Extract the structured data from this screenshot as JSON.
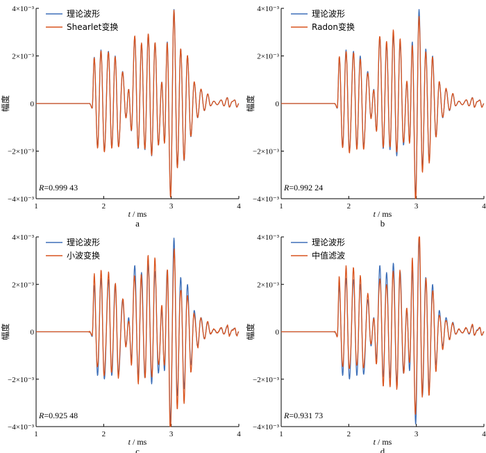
{
  "chart_data": [
    {
      "type": "line",
      "panel": "a",
      "ylabel": "幅度",
      "xlabel_var": "t",
      "xlabel_unit": " / ms",
      "xlim": [
        1,
        4
      ],
      "ylim": [
        -0.004,
        0.004
      ],
      "x_ticks": [
        "1",
        "2",
        "3",
        "4"
      ],
      "y_ticks": [
        "−4×10⁻³",
        "−2×10⁻³",
        "0",
        "2×10⁻³",
        "4×10⁻³"
      ],
      "legend_position": "top-left",
      "r_prefix": "R",
      "r_value": "=0.999 43",
      "series": [
        {
          "name": "理论波形",
          "color": "#3d6fb8",
          "deviation": 0.0
        },
        {
          "name": "Shearlet变换",
          "color": "#d9541e",
          "deviation": 0.02
        }
      ]
    },
    {
      "type": "line",
      "panel": "b",
      "ylabel": "幅度",
      "xlabel_var": "t",
      "xlabel_unit": " / ms",
      "xlim": [
        1,
        4
      ],
      "ylim": [
        -0.004,
        0.004
      ],
      "x_ticks": [
        "1",
        "2",
        "3",
        "4"
      ],
      "y_ticks": [
        "−4×10⁻³",
        "−2×10⁻³",
        "0",
        "2×10⁻³",
        "4×10⁻³"
      ],
      "legend_position": "top-left",
      "r_prefix": "R",
      "r_value": "=0.992 24",
      "series": [
        {
          "name": "理论波形",
          "color": "#3d6fb8",
          "deviation": 0.0
        },
        {
          "name": "Radon变换",
          "color": "#d9541e",
          "deviation": 0.08
        }
      ]
    },
    {
      "type": "line",
      "panel": "c",
      "ylabel": "幅度",
      "xlabel_var": "t",
      "xlabel_unit": " / ms",
      "xlim": [
        1,
        4
      ],
      "ylim": [
        -0.004,
        0.004
      ],
      "x_ticks": [
        "1",
        "2",
        "3",
        "4"
      ],
      "y_ticks": [
        "−4×10⁻³",
        "−2×10⁻³",
        "0",
        "2×10⁻³",
        "4×10⁻³"
      ],
      "legend_position": "top-left",
      "r_prefix": "R",
      "r_value": "=0.925 48",
      "series": [
        {
          "name": "理论波形",
          "color": "#3d6fb8",
          "deviation": 0.0
        },
        {
          "name": "小波变换",
          "color": "#d9541e",
          "deviation": 0.28
        }
      ]
    },
    {
      "type": "line",
      "panel": "d",
      "ylabel": "幅度",
      "xlabel_var": "t",
      "xlabel_unit": " / ms",
      "xlim": [
        1,
        4
      ],
      "ylim": [
        -0.004,
        0.004
      ],
      "x_ticks": [
        "1",
        "2",
        "3",
        "4"
      ],
      "y_ticks": [
        "−4×10⁻³",
        "−2×10⁻³",
        "0",
        "2×10⁻³",
        "4×10⁻³"
      ],
      "legend_position": "top-left",
      "r_prefix": "R",
      "r_value": "=0.931 73",
      "series": [
        {
          "name": "理论波形",
          "color": "#3d6fb8",
          "deviation": 0.0
        },
        {
          "name": "中值滤波",
          "color": "#d9541e",
          "deviation": 0.25
        }
      ]
    }
  ],
  "waveform": {
    "units": "x in ms, y in amplitude",
    "peaks": [
      [
        1.8,
        -4e-05
      ],
      [
        1.83,
        -0.0002
      ],
      [
        1.86,
        0.00195
      ],
      [
        1.91,
        -0.00185
      ],
      [
        1.96,
        0.00225
      ],
      [
        2.01,
        -0.002
      ],
      [
        2.07,
        0.0022
      ],
      [
        2.12,
        -0.00185
      ],
      [
        2.17,
        0.002
      ],
      [
        2.22,
        -0.0018
      ],
      [
        2.28,
        0.00135
      ],
      [
        2.33,
        -0.0006
      ],
      [
        2.37,
        0.0006
      ],
      [
        2.41,
        -0.00115
      ],
      [
        2.46,
        0.0028
      ],
      [
        2.51,
        -0.0019
      ],
      [
        2.56,
        0.0025
      ],
      [
        2.61,
        -0.00195
      ],
      [
        2.66,
        0.0029
      ],
      [
        2.71,
        -0.0022
      ],
      [
        2.76,
        0.00255
      ],
      [
        2.81,
        -0.00175
      ],
      [
        2.86,
        0.0009
      ],
      [
        2.9,
        -0.00165
      ],
      [
        2.94,
        0.0026
      ],
      [
        2.99,
        -0.0039
      ],
      [
        3.04,
        0.00395
      ],
      [
        3.09,
        -0.0027
      ],
      [
        3.14,
        0.0023
      ],
      [
        3.19,
        -0.0024
      ],
      [
        3.24,
        0.002
      ],
      [
        3.29,
        -0.0014
      ],
      [
        3.34,
        0.0009
      ],
      [
        3.39,
        -0.0006
      ],
      [
        3.44,
        0.0006
      ],
      [
        3.49,
        -0.0003
      ],
      [
        3.54,
        0.0004
      ],
      [
        3.58,
        -0.0001
      ],
      [
        3.63,
        0.0001
      ],
      [
        3.68,
        -5e-05
      ],
      [
        3.74,
        0.00015
      ],
      [
        3.78,
        -0.0001
      ],
      [
        3.83,
        0.00025
      ],
      [
        3.86,
        -0.00015
      ],
      [
        3.9,
        8e-05
      ],
      [
        3.94,
        0.00015
      ],
      [
        3.97,
        -0.00015
      ],
      [
        4.0,
        0.0
      ]
    ]
  }
}
